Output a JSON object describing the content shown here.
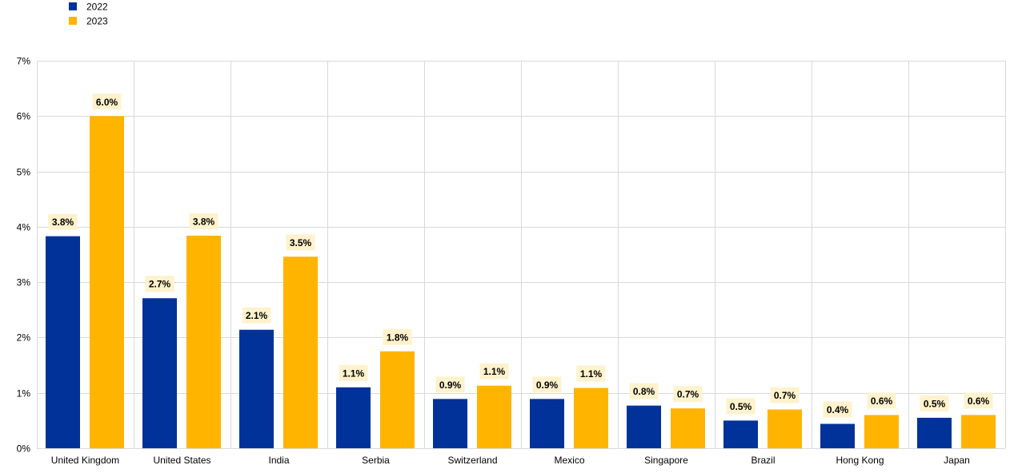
{
  "chart_data": {
    "type": "bar",
    "title": "",
    "xlabel": "",
    "ylabel": "",
    "categories": [
      "United Kingdom",
      "United States",
      "India",
      "Serbia",
      "Switzerland",
      "Mexico",
      "Singapore",
      "Brazil",
      "Hong Kong",
      "Japan"
    ],
    "series": [
      {
        "name": "2022",
        "color": "#003299",
        "values": [
          3.83,
          2.71,
          2.14,
          1.1,
          0.89,
          0.89,
          0.77,
          0.5,
          0.44,
          0.55
        ],
        "labels": [
          "3.8%",
          "2.7%",
          "2.1%",
          "1.1%",
          "0.9%",
          "0.9%",
          "0.8%",
          "0.5%",
          "0.4%",
          "0.5%"
        ]
      },
      {
        "name": "2023",
        "color": "#FFB400",
        "values": [
          6.0,
          3.84,
          3.46,
          1.75,
          1.13,
          1.09,
          0.72,
          0.7,
          0.6,
          0.6
        ],
        "labels": [
          "6.0%",
          "3.8%",
          "3.5%",
          "1.8%",
          "1.1%",
          "1.1%",
          "0.7%",
          "0.7%",
          "0.6%",
          "0.6%"
        ]
      }
    ],
    "ylim": [
      0,
      7
    ],
    "yticks": [
      {
        "value": 0,
        "label": "0%"
      },
      {
        "value": 1,
        "label": "1%"
      },
      {
        "value": 2,
        "label": "2%"
      },
      {
        "value": 3,
        "label": "3%"
      },
      {
        "value": 4,
        "label": "4%"
      },
      {
        "value": 5,
        "label": "5%"
      },
      {
        "value": 6,
        "label": "6%"
      },
      {
        "value": 7,
        "label": "7%"
      }
    ],
    "grid": true,
    "legend_position": "top-left",
    "label_background_color": "#FFF2CC",
    "grid_color": "#D9D9D9"
  }
}
